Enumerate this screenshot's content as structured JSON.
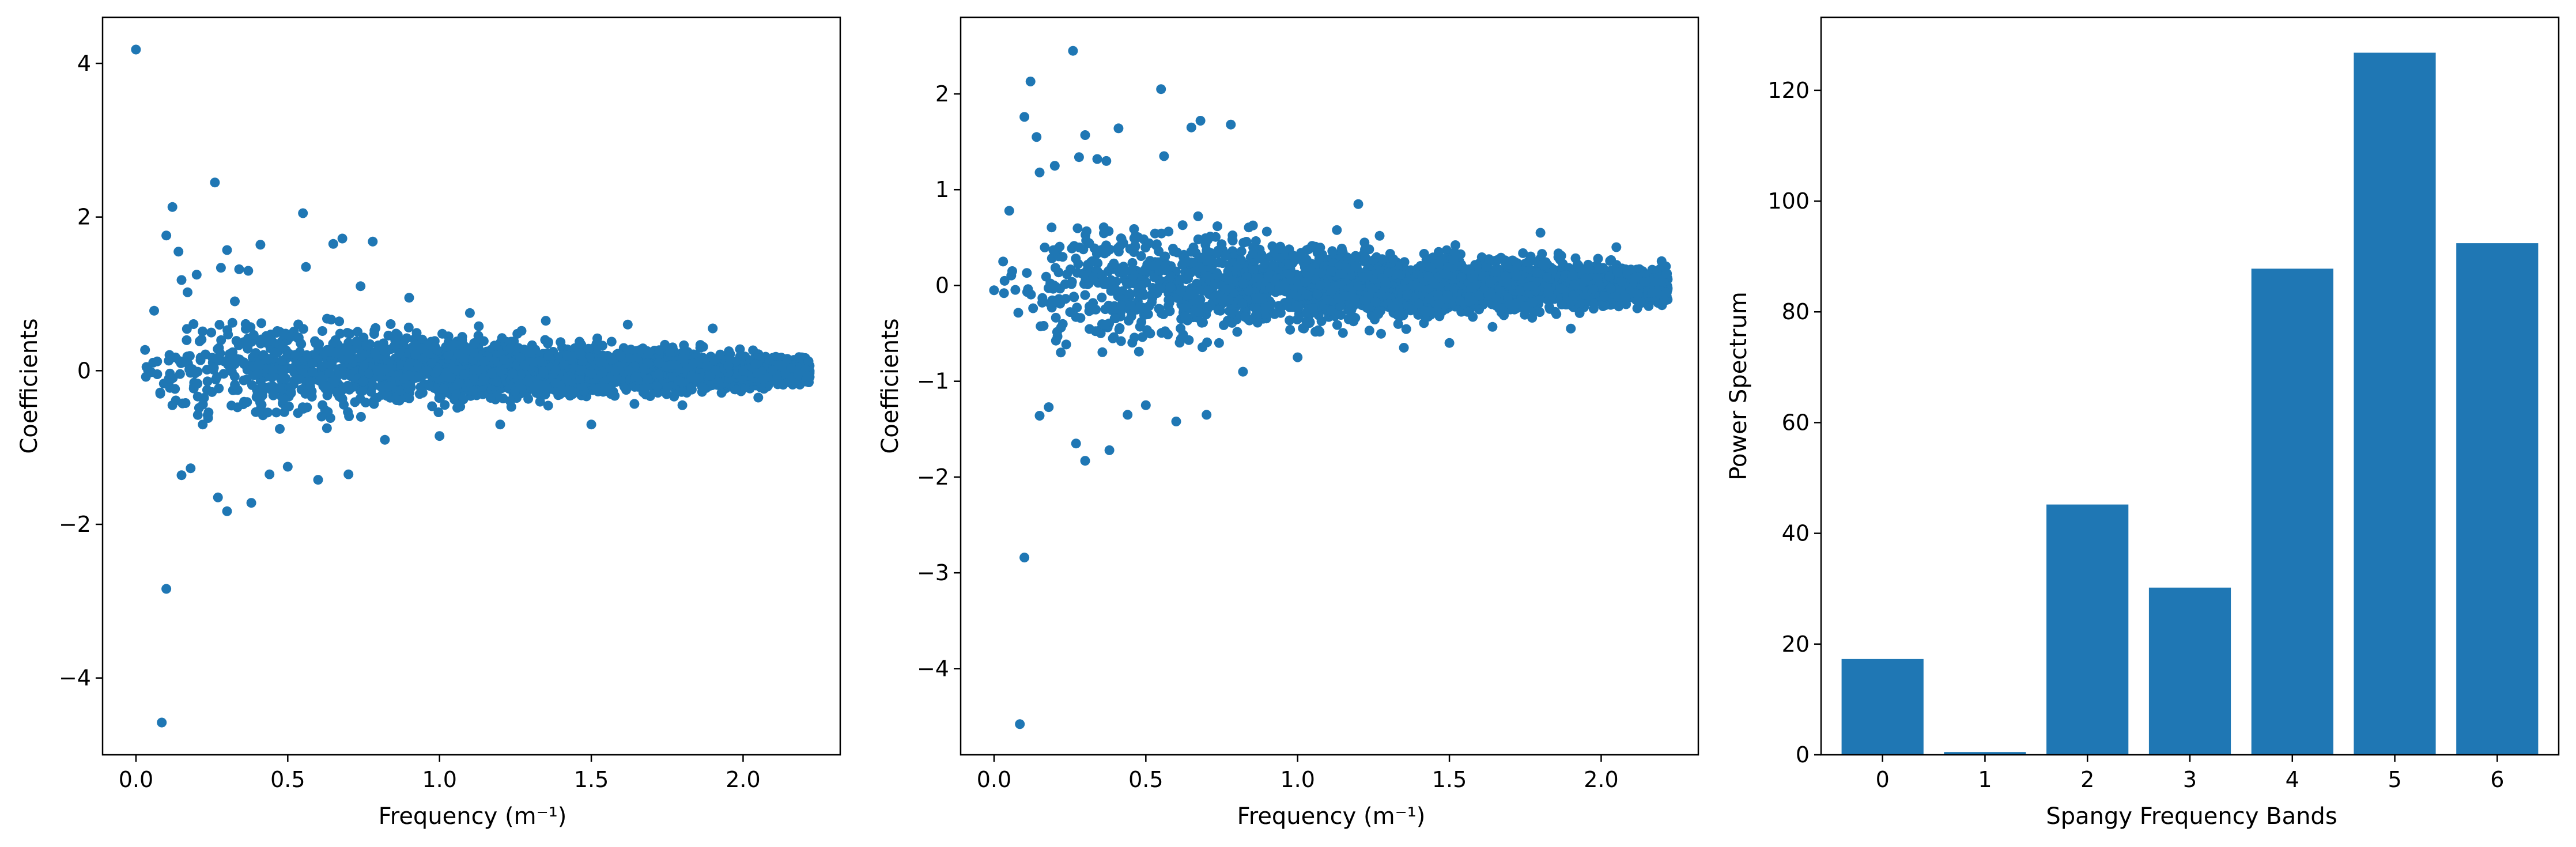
{
  "colors": {
    "series": "#1f77b4",
    "axes": "#000000",
    "background": "#ffffff"
  },
  "chart_data": [
    {
      "type": "scatter",
      "title": "",
      "xlabel": "Frequency (m⁻¹)",
      "ylabel": "Coefficients",
      "xlim": [
        -0.11,
        2.32
      ],
      "ylim": [
        -5.0,
        4.6
      ],
      "xticks": [
        0.0,
        0.5,
        1.0,
        1.5,
        2.0
      ],
      "xtick_labels": [
        "0.0",
        "0.5",
        "1.0",
        "1.5",
        "2.0"
      ],
      "yticks": [
        -4,
        -2,
        0,
        2,
        4
      ],
      "ytick_labels": [
        "−4",
        "−2",
        "0",
        "2",
        "4"
      ],
      "grid": false,
      "legend": "none",
      "points": [
        [
          0.0,
          4.18
        ],
        [
          0.03,
          0.27
        ],
        [
          0.05,
          -0.02
        ],
        [
          0.06,
          0.78
        ],
        [
          0.07,
          0.12
        ],
        [
          0.08,
          -0.3
        ],
        [
          0.085,
          -4.58
        ],
        [
          0.1,
          -2.84
        ],
        [
          0.1,
          1.76
        ],
        [
          0.12,
          2.13
        ],
        [
          0.12,
          -0.45
        ],
        [
          0.14,
          1.55
        ],
        [
          0.15,
          1.18
        ],
        [
          0.15,
          -1.36
        ],
        [
          0.17,
          1.02
        ],
        [
          0.18,
          -1.27
        ],
        [
          0.2,
          1.25
        ],
        [
          0.22,
          -0.7
        ],
        [
          0.26,
          2.45
        ],
        [
          0.27,
          -1.65
        ],
        [
          0.28,
          1.34
        ],
        [
          0.3,
          1.57
        ],
        [
          0.3,
          -1.83
        ],
        [
          0.34,
          1.32
        ],
        [
          0.37,
          1.3
        ],
        [
          0.38,
          -1.72
        ],
        [
          0.41,
          1.64
        ],
        [
          0.44,
          -1.35
        ],
        [
          0.5,
          -1.25
        ],
        [
          0.55,
          2.05
        ],
        [
          0.56,
          1.35
        ],
        [
          0.6,
          -1.42
        ],
        [
          0.65,
          1.65
        ],
        [
          0.68,
          1.72
        ],
        [
          0.7,
          -1.35
        ],
        [
          0.78,
          1.68
        ],
        [
          0.74,
          1.1
        ],
        [
          0.82,
          -0.9
        ],
        [
          0.9,
          0.95
        ],
        [
          1.0,
          -0.85
        ],
        [
          1.1,
          0.75
        ],
        [
          1.2,
          -0.7
        ],
        [
          1.35,
          0.65
        ],
        [
          1.5,
          -0.7
        ],
        [
          1.62,
          0.6
        ],
        [
          1.8,
          -0.45
        ],
        [
          1.9,
          0.55
        ],
        [
          2.05,
          -0.35
        ]
      ],
      "cloud_envelope": [
        [
          0.02,
          0.3
        ],
        [
          0.1,
          0.55
        ],
        [
          0.2,
          0.95
        ],
        [
          0.3,
          1.05
        ],
        [
          0.4,
          1.05
        ],
        [
          0.5,
          1.0
        ],
        [
          0.6,
          0.95
        ],
        [
          0.7,
          0.85
        ],
        [
          0.8,
          0.75
        ],
        [
          1.0,
          0.6
        ],
        [
          1.2,
          0.55
        ],
        [
          1.4,
          0.48
        ],
        [
          1.6,
          0.42
        ],
        [
          1.8,
          0.36
        ],
        [
          2.0,
          0.3
        ],
        [
          2.1,
          0.28
        ],
        [
          2.22,
          0.25
        ]
      ]
    },
    {
      "type": "scatter",
      "title": "",
      "xlabel": "Frequency (m⁻¹)",
      "ylabel": "Coefficients",
      "xlim": [
        -0.11,
        2.32
      ],
      "ylim": [
        -4.9,
        2.8
      ],
      "xticks": [
        0.0,
        0.5,
        1.0,
        1.5,
        2.0
      ],
      "xtick_labels": [
        "0.0",
        "0.5",
        "1.0",
        "1.5",
        "2.0"
      ],
      "yticks": [
        -4,
        -3,
        -2,
        -1,
        0,
        1,
        2
      ],
      "ytick_labels": [
        "−4",
        "−3",
        "−2",
        "−1",
        "0",
        "1",
        "2"
      ],
      "grid": false,
      "legend": "none",
      "points": [
        [
          0.0,
          -0.05
        ],
        [
          0.03,
          0.25
        ],
        [
          0.05,
          0.78
        ],
        [
          0.06,
          0.15
        ],
        [
          0.085,
          -4.58
        ],
        [
          0.1,
          -2.84
        ],
        [
          0.1,
          1.76
        ],
        [
          0.12,
          2.13
        ],
        [
          0.14,
          1.55
        ],
        [
          0.15,
          -1.36
        ],
        [
          0.15,
          1.18
        ],
        [
          0.18,
          -1.27
        ],
        [
          0.2,
          1.25
        ],
        [
          0.22,
          -0.7
        ],
        [
          0.26,
          2.45
        ],
        [
          0.27,
          -1.65
        ],
        [
          0.28,
          1.34
        ],
        [
          0.3,
          1.57
        ],
        [
          0.3,
          -1.83
        ],
        [
          0.34,
          1.32
        ],
        [
          0.37,
          1.3
        ],
        [
          0.38,
          -1.72
        ],
        [
          0.41,
          1.64
        ],
        [
          0.44,
          -1.35
        ],
        [
          0.5,
          -1.25
        ],
        [
          0.55,
          2.05
        ],
        [
          0.56,
          1.35
        ],
        [
          0.6,
          -1.42
        ],
        [
          0.65,
          1.65
        ],
        [
          0.68,
          1.72
        ],
        [
          0.7,
          -1.35
        ],
        [
          0.78,
          1.68
        ],
        [
          0.82,
          -0.9
        ],
        [
          1.0,
          -0.75
        ],
        [
          1.2,
          0.85
        ],
        [
          1.35,
          -0.65
        ],
        [
          1.5,
          -0.6
        ],
        [
          1.8,
          0.55
        ],
        [
          1.9,
          -0.45
        ],
        [
          2.05,
          0.4
        ]
      ],
      "cloud_envelope": [
        [
          0.02,
          0.3
        ],
        [
          0.1,
          0.55
        ],
        [
          0.2,
          0.95
        ],
        [
          0.3,
          1.05
        ],
        [
          0.4,
          1.05
        ],
        [
          0.5,
          1.0
        ],
        [
          0.6,
          0.95
        ],
        [
          0.7,
          0.85
        ],
        [
          0.8,
          0.75
        ],
        [
          1.0,
          0.6
        ],
        [
          1.2,
          0.55
        ],
        [
          1.4,
          0.48
        ],
        [
          1.6,
          0.42
        ],
        [
          1.8,
          0.36
        ],
        [
          2.0,
          0.3
        ],
        [
          2.1,
          0.28
        ],
        [
          2.22,
          0.25
        ]
      ]
    },
    {
      "type": "bar",
      "title": "",
      "xlabel": "Spangy Frequency Bands",
      "ylabel": "Power Spectrum",
      "categories": [
        "0",
        "1",
        "2",
        "3",
        "4",
        "5",
        "6"
      ],
      "values": [
        17.3,
        0.5,
        45.2,
        30.2,
        87.8,
        126.8,
        92.4
      ],
      "ylim": [
        0,
        133.2
      ],
      "yticks": [
        0,
        20,
        40,
        60,
        80,
        100,
        120
      ],
      "ytick_labels": [
        "0",
        "20",
        "40",
        "60",
        "80",
        "100",
        "120"
      ],
      "grid": false,
      "legend": "none"
    }
  ]
}
